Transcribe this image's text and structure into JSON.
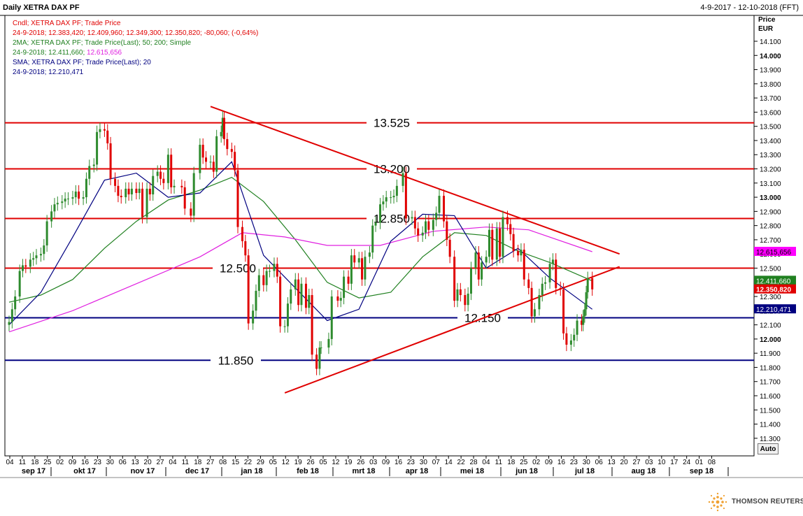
{
  "header": {
    "title": "Daily XETRA DAX PF",
    "date_range": "4-9-2017 - 12-10-2018 (FFT)"
  },
  "legend": {
    "cndl_name": "Cndl; XETRA DAX PF; Trade Price",
    "cndl_values": "24-9-2018; 12.383,420; 12.409,960; 12.349,300; 12.350,820; -80,060; (-0,64%)",
    "ma2_name": "2MA; XETRA DAX PF; Trade Price(Last);  50;  200;  Simple",
    "ma2_values_date": "24-9-2018; 12.411,660;",
    "ma2_values_last": " 12.615,656",
    "sma_name": "SMA; XETRA DAX PF; Trade Price(Last);  20",
    "sma_values": "24-9-2018; 12.210,471"
  },
  "price_axis": {
    "header_line1": "Price",
    "header_line2": "EUR",
    "ticks": [
      "14.100",
      "14.000",
      "13.900",
      "13.800",
      "13.700",
      "13.600",
      "13.500",
      "13.400",
      "13.300",
      "13.200",
      "13.100",
      "13.000",
      "12.900",
      "12.800",
      "12.700",
      "12.600",
      "12.500",
      "12.400",
      "12.300",
      "12.200",
      "12.100",
      "12.000",
      "11.900",
      "11.800",
      "11.700",
      "11.600",
      "11.500",
      "11.400",
      "11.300"
    ],
    "bold_ticks": [
      "14.000",
      "13.000",
      "12.000"
    ]
  },
  "price_tags": {
    "ma200": "12.615,656",
    "ma50": "12.411,660",
    "close": "12.350,820",
    "sma20": "12.210,471"
  },
  "time_axis": {
    "days": [
      "04",
      "11",
      "18",
      "25",
      "02",
      "09",
      "16",
      "23",
      "30",
      "06",
      "13",
      "20",
      "27",
      "04",
      "11",
      "18",
      "27",
      "08",
      "15",
      "22",
      "29",
      "05",
      "12",
      "19",
      "26",
      "05",
      "12",
      "19",
      "26",
      "03",
      "09",
      "16",
      "23",
      "30",
      "07",
      "14",
      "22",
      "28",
      "04",
      "11",
      "18",
      "25",
      "02",
      "09",
      "16",
      "23",
      "30",
      "06",
      "13",
      "20",
      "27",
      "03",
      "10",
      "17",
      "24",
      "01",
      "08"
    ],
    "months": [
      "sep 17",
      "okt 17",
      "nov 17",
      "dec 17",
      "jan 18",
      "feb 18",
      "mrt 18",
      "apr 18",
      "mei 18",
      "jun 18",
      "jul 18",
      "aug 18",
      "sep 18"
    ]
  },
  "auto_label": "Auto",
  "brand": "THOMSON REUTERS",
  "colors": {
    "up": "#2e8b2e",
    "down": "#e00000",
    "ma50": "#208020",
    "ma200": "#e020e0",
    "sma20": "#000080",
    "resistance": "#e00000",
    "support": "#000080"
  },
  "chart_data": {
    "type": "candlestick",
    "title": "Daily XETRA DAX PF",
    "ylabel": "Price EUR",
    "ylim": [
      11200,
      14150
    ],
    "x_range": [
      "2017-09-04",
      "2018-10-12"
    ],
    "grid": false,
    "horizontal_levels": [
      {
        "value": 13525,
        "label": "13.525",
        "color": "red"
      },
      {
        "value": 13200,
        "label": "13.200",
        "color": "red"
      },
      {
        "value": 12850,
        "label": "12.850",
        "color": "red"
      },
      {
        "value": 12500,
        "label": "12.500",
        "color": "red"
      },
      {
        "value": 12150,
        "label": "12.150",
        "color": "navy"
      },
      {
        "value": 11850,
        "label": "11.850",
        "color": "navy"
      }
    ],
    "trendlines": [
      {
        "name": "descending resistance",
        "points": [
          [
            "2018-01-15",
            13640
          ],
          [
            "2018-10-12",
            12600
          ]
        ]
      },
      {
        "name": "ascending support",
        "points": [
          [
            "2018-03-05",
            11620
          ],
          [
            "2018-10-12",
            12510
          ]
        ]
      }
    ],
    "series": [
      {
        "name": "Cndl; XETRA DAX PF; Trade Price",
        "style": "candles",
        "points": [
          [
            "2017-09-04",
            12120
          ],
          [
            "2017-09-06",
            12210
          ],
          [
            "2017-09-08",
            12300
          ],
          [
            "2017-09-11",
            12480
          ],
          [
            "2017-09-13",
            12520
          ],
          [
            "2017-09-15",
            12510
          ],
          [
            "2017-09-18",
            12560
          ],
          [
            "2017-09-20",
            12570
          ],
          [
            "2017-09-22",
            12590
          ],
          [
            "2017-09-25",
            12600
          ],
          [
            "2017-09-27",
            12660
          ],
          [
            "2017-09-29",
            12830
          ],
          [
            "2017-10-02",
            12900
          ],
          [
            "2017-10-04",
            12950
          ],
          [
            "2017-10-06",
            12960
          ],
          [
            "2017-10-09",
            12970
          ],
          [
            "2017-10-11",
            12990
          ],
          [
            "2017-10-13",
            12990
          ],
          [
            "2017-10-16",
            13000
          ],
          [
            "2017-10-18",
            13040
          ],
          [
            "2017-10-20",
            12990
          ],
          [
            "2017-10-23",
            13000
          ],
          [
            "2017-10-25",
            13130
          ],
          [
            "2017-10-27",
            13220
          ],
          [
            "2017-10-30",
            13230
          ],
          [
            "2017-11-01",
            13460
          ],
          [
            "2017-11-03",
            13480
          ],
          [
            "2017-11-06",
            13470
          ],
          [
            "2017-11-08",
            13380
          ],
          [
            "2017-11-10",
            13130
          ],
          [
            "2017-11-13",
            13080
          ],
          [
            "2017-11-15",
            13010
          ],
          [
            "2017-11-17",
            13000
          ],
          [
            "2017-11-20",
            13060
          ],
          [
            "2017-11-22",
            13020
          ],
          [
            "2017-11-24",
            13060
          ],
          [
            "2017-11-27",
            13030
          ],
          [
            "2017-11-29",
            13060
          ],
          [
            "2017-12-01",
            12860
          ],
          [
            "2017-12-04",
            13060
          ],
          [
            "2017-12-06",
            13020
          ],
          [
            "2017-12-08",
            13150
          ],
          [
            "2017-12-11",
            13180
          ],
          [
            "2017-12-13",
            13130
          ],
          [
            "2017-12-15",
            13100
          ],
          [
            "2017-12-18",
            13300
          ],
          [
            "2017-12-20",
            13070
          ],
          [
            "2017-12-22",
            13080
          ],
          [
            "2017-12-27",
            13070
          ],
          [
            "2017-12-29",
            12920
          ],
          [
            "2018-01-02",
            12870
          ],
          [
            "2018-01-04",
            13170
          ],
          [
            "2018-01-08",
            13370
          ],
          [
            "2018-01-10",
            13280
          ],
          [
            "2018-01-12",
            13250
          ],
          [
            "2018-01-15",
            13250
          ],
          [
            "2018-01-17",
            13180
          ],
          [
            "2018-01-19",
            13430
          ],
          [
            "2018-01-22",
            13460
          ],
          [
            "2018-01-23",
            13560
          ],
          [
            "2018-01-24",
            13410
          ],
          [
            "2018-01-26",
            13340
          ],
          [
            "2018-01-29",
            13320
          ],
          [
            "2018-01-31",
            13190
          ],
          [
            "2018-02-02",
            12790
          ],
          [
            "2018-02-05",
            12690
          ],
          [
            "2018-02-07",
            12590
          ],
          [
            "2018-02-09",
            12110
          ],
          [
            "2018-02-12",
            12200
          ],
          [
            "2018-02-14",
            12340
          ],
          [
            "2018-02-16",
            12450
          ],
          [
            "2018-02-19",
            12380
          ],
          [
            "2018-02-21",
            12480
          ],
          [
            "2018-02-23",
            12480
          ],
          [
            "2018-02-26",
            12530
          ],
          [
            "2018-02-28",
            12440
          ],
          [
            "2018-03-02",
            12090
          ],
          [
            "2018-03-05",
            12090
          ],
          [
            "2018-03-07",
            12250
          ],
          [
            "2018-03-09",
            12350
          ],
          [
            "2018-03-12",
            12420
          ],
          [
            "2018-03-14",
            12240
          ],
          [
            "2018-03-16",
            12390
          ],
          [
            "2018-03-19",
            12220
          ],
          [
            "2018-03-21",
            12310
          ],
          [
            "2018-03-23",
            11890
          ],
          [
            "2018-03-26",
            11790
          ],
          [
            "2018-03-28",
            11940
          ],
          [
            "2018-03-29",
            11940
          ],
          [
            "2018-04-03",
            12000
          ],
          [
            "2018-04-05",
            12300
          ],
          [
            "2018-04-09",
            12270
          ],
          [
            "2018-04-11",
            12290
          ],
          [
            "2018-04-13",
            12440
          ],
          [
            "2018-04-16",
            12390
          ],
          [
            "2018-04-18",
            12590
          ],
          [
            "2018-04-20",
            12540
          ],
          [
            "2018-04-23",
            12570
          ],
          [
            "2018-04-25",
            12420
          ],
          [
            "2018-04-27",
            12580
          ],
          [
            "2018-04-30",
            12610
          ],
          [
            "2018-05-02",
            12800
          ],
          [
            "2018-05-04",
            12820
          ],
          [
            "2018-05-07",
            12950
          ],
          [
            "2018-05-09",
            12970
          ],
          [
            "2018-05-11",
            13000
          ],
          [
            "2018-05-14",
            13000
          ],
          [
            "2018-05-16",
            13010
          ],
          [
            "2018-05-18",
            13080
          ],
          [
            "2018-05-22",
            13170
          ],
          [
            "2018-05-24",
            12850
          ],
          [
            "2018-05-28",
            12860
          ],
          [
            "2018-05-30",
            12780
          ],
          [
            "2018-06-01",
            12730
          ],
          [
            "2018-06-04",
            12750
          ],
          [
            "2018-06-06",
            12830
          ],
          [
            "2018-06-08",
            12770
          ],
          [
            "2018-06-11",
            12840
          ],
          [
            "2018-06-13",
            12890
          ],
          [
            "2018-06-15",
            13010
          ],
          [
            "2018-06-18",
            12830
          ],
          [
            "2018-06-20",
            12700
          ],
          [
            "2018-06-22",
            12580
          ],
          [
            "2018-06-25",
            12270
          ],
          [
            "2018-06-27",
            12350
          ],
          [
            "2018-06-29",
            12310
          ],
          [
            "2018-07-02",
            12240
          ],
          [
            "2018-07-04",
            12320
          ],
          [
            "2018-07-06",
            12500
          ],
          [
            "2018-07-09",
            12610
          ],
          [
            "2018-07-11",
            12420
          ],
          [
            "2018-07-13",
            12540
          ],
          [
            "2018-07-16",
            12580
          ],
          [
            "2018-07-18",
            12770
          ],
          [
            "2018-07-20",
            12560
          ],
          [
            "2018-07-23",
            12780
          ],
          [
            "2018-07-25",
            12580
          ],
          [
            "2018-07-27",
            12860
          ],
          [
            "2018-07-30",
            12810
          ],
          [
            "2018-08-01",
            12740
          ],
          [
            "2018-08-03",
            12620
          ],
          [
            "2018-08-06",
            12590
          ],
          [
            "2018-08-08",
            12630
          ],
          [
            "2018-08-10",
            12420
          ],
          [
            "2018-08-13",
            12360
          ],
          [
            "2018-08-15",
            12160
          ],
          [
            "2018-08-17",
            12210
          ],
          [
            "2018-08-20",
            12310
          ],
          [
            "2018-08-22",
            12390
          ],
          [
            "2018-08-24",
            12400
          ],
          [
            "2018-08-27",
            12530
          ],
          [
            "2018-08-29",
            12560
          ],
          [
            "2018-08-31",
            12360
          ],
          [
            "2018-09-03",
            12350
          ],
          [
            "2018-09-05",
            12040
          ],
          [
            "2018-09-07",
            11960
          ],
          [
            "2018-09-10",
            11990
          ],
          [
            "2018-09-12",
            12030
          ],
          [
            "2018-09-14",
            12130
          ],
          [
            "2018-09-17",
            12100
          ],
          [
            "2018-09-18",
            12160
          ],
          [
            "2018-09-19",
            12210
          ],
          [
            "2018-09-20",
            12330
          ],
          [
            "2018-09-21",
            12430
          ],
          [
            "2018-09-24",
            12350
          ]
        ]
      },
      {
        "name": "2MA 50",
        "style": "line",
        "points": [
          [
            "2017-09-04",
            12260
          ],
          [
            "2017-09-25",
            12310
          ],
          [
            "2017-10-16",
            12420
          ],
          [
            "2017-11-06",
            12640
          ],
          [
            "2017-11-27",
            12830
          ],
          [
            "2017-12-18",
            12980
          ],
          [
            "2018-01-08",
            13050
          ],
          [
            "2018-01-29",
            13140
          ],
          [
            "2018-02-19",
            12970
          ],
          [
            "2018-03-12",
            12700
          ],
          [
            "2018-04-02",
            12400
          ],
          [
            "2018-04-23",
            12290
          ],
          [
            "2018-05-14",
            12330
          ],
          [
            "2018-06-04",
            12580
          ],
          [
            "2018-06-25",
            12750
          ],
          [
            "2018-07-16",
            12730
          ],
          [
            "2018-08-06",
            12620
          ],
          [
            "2018-08-27",
            12540
          ],
          [
            "2018-09-24",
            12410
          ]
        ]
      },
      {
        "name": "2MA 200",
        "style": "line",
        "points": [
          [
            "2017-09-04",
            12050
          ],
          [
            "2017-10-16",
            12200
          ],
          [
            "2017-11-27",
            12390
          ],
          [
            "2018-01-08",
            12580
          ],
          [
            "2018-02-05",
            12750
          ],
          [
            "2018-03-05",
            12720
          ],
          [
            "2018-04-02",
            12660
          ],
          [
            "2018-05-07",
            12660
          ],
          [
            "2018-06-11",
            12760
          ],
          [
            "2018-07-16",
            12790
          ],
          [
            "2018-08-13",
            12770
          ],
          [
            "2018-09-24",
            12616
          ]
        ]
      },
      {
        "name": "SMA 20",
        "style": "line",
        "points": [
          [
            "2017-09-04",
            12100
          ],
          [
            "2017-09-25",
            12330
          ],
          [
            "2017-10-16",
            12720
          ],
          [
            "2017-11-06",
            13120
          ],
          [
            "2017-11-27",
            13170
          ],
          [
            "2017-12-18",
            13000
          ],
          [
            "2018-01-08",
            13030
          ],
          [
            "2018-01-29",
            13250
          ],
          [
            "2018-02-19",
            12590
          ],
          [
            "2018-03-12",
            12360
          ],
          [
            "2018-04-02",
            12130
          ],
          [
            "2018-04-23",
            12210
          ],
          [
            "2018-05-14",
            12690
          ],
          [
            "2018-06-04",
            12880
          ],
          [
            "2018-06-25",
            12870
          ],
          [
            "2018-07-16",
            12500
          ],
          [
            "2018-08-06",
            12640
          ],
          [
            "2018-08-27",
            12430
          ],
          [
            "2018-09-24",
            12210
          ]
        ]
      }
    ]
  }
}
